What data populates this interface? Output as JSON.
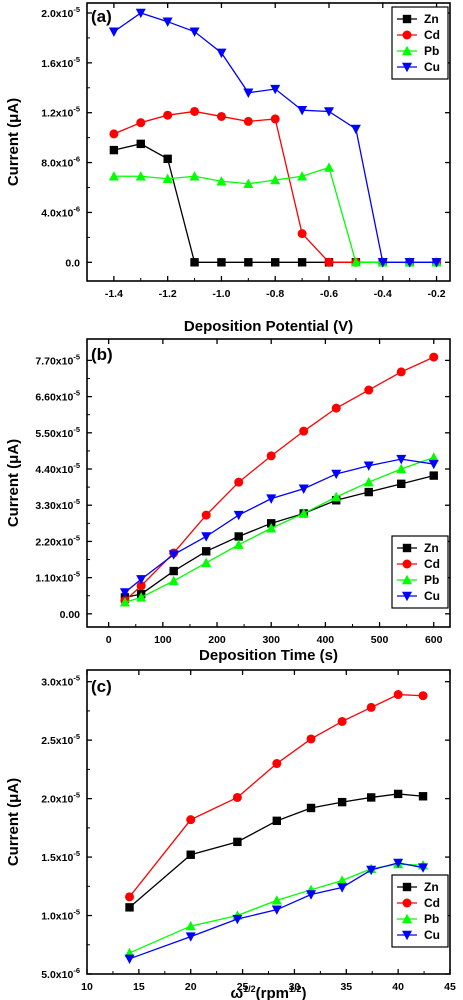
{
  "chart_data": [
    {
      "type": "line",
      "panel_label": "(a)",
      "xlabel": "Deposition Potential (V)",
      "ylabel": "Current (μA)",
      "xlim": [
        -1.5,
        -0.15
      ],
      "ylim": [
        -1.5,
        20.8
      ],
      "xticks": [
        -1.4,
        -1.2,
        -1.0,
        -0.8,
        -0.6,
        -0.4,
        -0.2
      ],
      "xtick_labels": [
        "-1.4",
        "-1.2",
        "-1.0",
        "-0.8",
        "-0.6",
        "-0.4",
        "-0.2"
      ],
      "yticks": [
        0,
        4,
        8,
        12,
        16,
        20
      ],
      "ytick_labels": [
        {
          "base": "0.0",
          "exp": ""
        },
        {
          "base": "4.0x10",
          "exp": "-6"
        },
        {
          "base": "8.0x10",
          "exp": "-6"
        },
        {
          "base": "1.2x10",
          "exp": "-5"
        },
        {
          "base": "1.6x10",
          "exp": "-5"
        },
        {
          "base": "2.0x10",
          "exp": "-5"
        }
      ],
      "value_scale_note": "",
      "legend_position": "top-right",
      "x": [
        -1.4,
        -1.3,
        -1.2,
        -1.1,
        -1.0,
        -0.9,
        -0.8,
        -0.7,
        -0.6,
        -0.5,
        -0.4,
        -0.3,
        -0.2
      ],
      "series": [
        {
          "name": "Zn",
          "color": "#000000",
          "marker": "square",
          "values": [
            9.0,
            9.5,
            8.3,
            0,
            0,
            0,
            0,
            0,
            0,
            0,
            0,
            0,
            0
          ]
        },
        {
          "name": "Cd",
          "color": "#ff0000",
          "marker": "circle",
          "values": [
            10.3,
            11.2,
            11.8,
            12.1,
            11.7,
            11.3,
            11.5,
            2.3,
            0,
            0,
            0,
            0,
            0
          ]
        },
        {
          "name": "Pb",
          "color": "#00ff00",
          "marker": "triangle-up",
          "values": [
            6.9,
            6.9,
            6.7,
            6.9,
            6.5,
            6.3,
            6.6,
            6.9,
            7.6,
            0,
            0,
            0,
            0
          ]
        },
        {
          "name": "Cu",
          "color": "#0000ff",
          "marker": "triangle-down",
          "values": [
            18.5,
            20.0,
            19.3,
            18.5,
            16.8,
            13.6,
            13.9,
            12.2,
            12.1,
            10.7,
            0,
            0,
            0
          ]
        }
      ]
    },
    {
      "type": "line",
      "panel_label": "(b)",
      "xlabel": "Deposition Time (s)",
      "ylabel": "Current (μA)",
      "xlim": [
        -40,
        630
      ],
      "ylim": [
        -0.4,
        8.35
      ],
      "xticks": [
        0,
        100,
        200,
        300,
        400,
        500,
        600
      ],
      "xtick_labels": [
        "0",
        "100",
        "200",
        "300",
        "400",
        "500",
        "600"
      ],
      "yticks": [
        0,
        1.1,
        2.2,
        3.3,
        4.4,
        5.5,
        6.6,
        7.7
      ],
      "ytick_labels": [
        {
          "base": "0.00",
          "exp": ""
        },
        {
          "base": "1.10x10",
          "exp": "-5"
        },
        {
          "base": "2.20x10",
          "exp": "-5"
        },
        {
          "base": "3.30x10",
          "exp": "-5"
        },
        {
          "base": "4.40x10",
          "exp": "-5"
        },
        {
          "base": "5.50x10",
          "exp": "-5"
        },
        {
          "base": "6.60x10",
          "exp": "-5"
        },
        {
          "base": "7.70x10",
          "exp": "-5"
        }
      ],
      "value_scale_note": "",
      "legend_position": "bottom-right",
      "x": [
        30,
        60,
        120,
        180,
        240,
        300,
        360,
        420,
        480,
        540,
        600
      ],
      "series": [
        {
          "name": "Zn",
          "color": "#000000",
          "marker": "square",
          "values": [
            0.5,
            0.6,
            1.3,
            1.9,
            2.35,
            2.75,
            3.05,
            3.45,
            3.7,
            3.95,
            4.2
          ]
        },
        {
          "name": "Cd",
          "color": "#ff0000",
          "marker": "circle",
          "values": [
            0.4,
            0.85,
            1.85,
            3.0,
            4.0,
            4.8,
            5.55,
            6.25,
            6.8,
            7.35,
            7.8
          ]
        },
        {
          "name": "Pb",
          "color": "#00ff00",
          "marker": "triangle-up",
          "values": [
            0.35,
            0.5,
            1.0,
            1.55,
            2.1,
            2.6,
            3.05,
            3.55,
            4.0,
            4.4,
            4.75
          ]
        },
        {
          "name": "Cu",
          "color": "#0000ff",
          "marker": "triangle-down",
          "values": [
            0.65,
            1.05,
            1.8,
            2.35,
            3.0,
            3.5,
            3.8,
            4.25,
            4.5,
            4.7,
            4.55
          ]
        }
      ]
    },
    {
      "type": "line",
      "panel_label": "(c)",
      "xlabel": "ω",
      "xlabel_sup": "1/2",
      "xlabel_rest": "(rpm",
      "xlabel_rest_sup": "1/2",
      "xlabel_end": ")",
      "ylabel": "Current (μA)",
      "xlim": [
        10,
        45
      ],
      "ylim": [
        5.0,
        31.0
      ],
      "xticks": [
        10,
        15,
        20,
        25,
        30,
        35,
        40,
        45
      ],
      "xtick_labels": [
        "10",
        "15",
        "20",
        "25",
        "30",
        "35",
        "40",
        "45"
      ],
      "yticks": [
        5,
        10,
        15,
        20,
        25,
        30
      ],
      "ytick_labels": [
        {
          "base": "5.0x10",
          "exp": "-6"
        },
        {
          "base": "1.0x10",
          "exp": "-5"
        },
        {
          "base": "1.5x10",
          "exp": "-5"
        },
        {
          "base": "2.0x10",
          "exp": "-5"
        },
        {
          "base": "2.5x10",
          "exp": "-5"
        },
        {
          "base": "3.0x10",
          "exp": "-5"
        }
      ],
      "value_scale_note": "",
      "legend_position": "bottom-right",
      "x": [
        14.1,
        20.0,
        24.5,
        28.3,
        31.6,
        34.6,
        37.4,
        40.0,
        42.4
      ],
      "series": [
        {
          "name": "Zn",
          "color": "#000000",
          "marker": "square",
          "values": [
            10.7,
            15.2,
            16.3,
            18.1,
            19.2,
            19.7,
            20.1,
            20.4,
            20.2
          ]
        },
        {
          "name": "Cd",
          "color": "#ff0000",
          "marker": "circle",
          "values": [
            11.6,
            18.2,
            20.1,
            23.0,
            25.1,
            26.6,
            27.8,
            28.9,
            28.8
          ]
        },
        {
          "name": "Pb",
          "color": "#00ff00",
          "marker": "triangle-up",
          "values": [
            6.8,
            9.1,
            10.0,
            11.3,
            12.2,
            13.0,
            14.0,
            14.4,
            14.3
          ]
        },
        {
          "name": "Cu",
          "color": "#0000ff",
          "marker": "triangle-down",
          "values": [
            6.3,
            8.2,
            9.7,
            10.5,
            11.8,
            12.4,
            13.9,
            14.5,
            14.1
          ]
        }
      ]
    }
  ]
}
